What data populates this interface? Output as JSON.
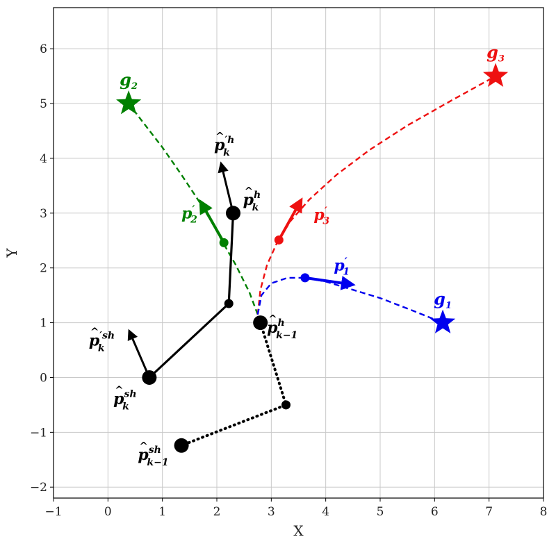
{
  "chart_data": {
    "type": "line",
    "xlabel": "X",
    "ylabel": "Y",
    "xlim": [
      -1,
      8
    ],
    "ylim": [
      -2.2,
      6.75
    ],
    "xticks": [
      "−1",
      "0",
      "1",
      "2",
      "3",
      "4",
      "5",
      "6",
      "7",
      "8"
    ],
    "yticks": [
      "−2",
      "−1",
      "0",
      "1",
      "2",
      "3",
      "4",
      "5",
      "6"
    ],
    "grid": true,
    "colors": {
      "green": "#008000",
      "red": "#ee1111",
      "blue": "#0000ee",
      "black": "#000000"
    },
    "goals": [
      {
        "label": "g",
        "sub": "2",
        "x": 0.38,
        "y": 5.0,
        "color": "#008000"
      },
      {
        "label": "g",
        "sub": "3",
        "x": 7.12,
        "y": 5.5,
        "color": "#ee1111"
      },
      {
        "label": "g",
        "sub": "1",
        "x": 6.15,
        "y": 1.0,
        "color": "#0000ee"
      }
    ],
    "predicted_paths": [
      {
        "name": "p2",
        "color": "#008000",
        "points": [
          [
            2.75,
            1.15
          ],
          [
            2.6,
            1.55
          ],
          [
            2.35,
            2.05
          ],
          [
            2.12,
            2.45
          ],
          [
            1.9,
            2.85
          ],
          [
            1.65,
            3.25
          ],
          [
            1.35,
            3.7
          ],
          [
            1.0,
            4.2
          ],
          [
            0.65,
            4.65
          ],
          [
            0.38,
            5.0
          ]
        ]
      },
      {
        "name": "p3",
        "color": "#ee1111",
        "points": [
          [
            2.75,
            1.15
          ],
          [
            2.8,
            1.6
          ],
          [
            2.92,
            2.05
          ],
          [
            3.1,
            2.45
          ],
          [
            3.35,
            2.85
          ],
          [
            3.7,
            3.25
          ],
          [
            4.2,
            3.7
          ],
          [
            4.8,
            4.15
          ],
          [
            5.5,
            4.6
          ],
          [
            6.3,
            5.05
          ],
          [
            7.12,
            5.5
          ]
        ]
      },
      {
        "name": "p1",
        "color": "#0000ee",
        "points": [
          [
            2.75,
            1.15
          ],
          [
            2.82,
            1.5
          ],
          [
            3.0,
            1.72
          ],
          [
            3.3,
            1.82
          ],
          [
            3.62,
            1.82
          ],
          [
            4.0,
            1.75
          ],
          [
            4.5,
            1.6
          ],
          [
            5.0,
            1.45
          ],
          [
            5.6,
            1.22
          ],
          [
            6.15,
            1.0
          ]
        ]
      }
    ],
    "intermediate_points": [
      {
        "x": 2.13,
        "y": 2.46,
        "color": "#008000"
      },
      {
        "x": 3.14,
        "y": 2.51,
        "color": "#ee1111"
      },
      {
        "x": 3.62,
        "y": 1.82,
        "color": "#0000ee"
      }
    ],
    "direction_arrows": [
      {
        "from": [
          2.13,
          2.46
        ],
        "to": [
          1.65,
          3.3
        ],
        "color": "#008000",
        "width": 4
      },
      {
        "from": [
          3.14,
          2.51
        ],
        "to": [
          3.6,
          3.33
        ],
        "color": "#ee1111",
        "width": 4
      },
      {
        "from": [
          3.62,
          1.82
        ],
        "to": [
          4.6,
          1.68
        ],
        "color": "#0000ee",
        "width": 4
      },
      {
        "from": [
          2.3,
          3.0
        ],
        "to": [
          2.06,
          3.98
        ],
        "color": "#000000",
        "width": 3
      },
      {
        "from": [
          0.76,
          0.0
        ],
        "to": [
          0.36,
          0.92
        ],
        "color": "#000000",
        "width": 3
      }
    ],
    "human_current": {
      "points": [
        [
          2.3,
          3.0
        ],
        [
          2.22,
          1.35
        ],
        [
          0.76,
          0.0
        ]
      ],
      "style": "solid",
      "color": "#000000"
    },
    "human_previous": {
      "points": [
        [
          2.8,
          1.0
        ],
        [
          3.27,
          -0.5
        ],
        [
          1.35,
          -1.24
        ]
      ],
      "style": "dotted",
      "color": "#000000"
    },
    "joints": [
      {
        "x": 2.3,
        "y": 3.0,
        "size": "large"
      },
      {
        "x": 2.22,
        "y": 1.35,
        "size": "small"
      },
      {
        "x": 0.76,
        "y": 0.0,
        "size": "large"
      },
      {
        "x": 2.8,
        "y": 1.0,
        "size": "large"
      },
      {
        "x": 3.27,
        "y": -0.5,
        "size": "small"
      },
      {
        "x": 1.35,
        "y": -1.24,
        "size": "large"
      }
    ],
    "annotations": [
      {
        "base": "p",
        "sub": "2",
        "prime": "′",
        "hat": false,
        "x": 1.35,
        "y": 2.9,
        "color": "#008000"
      },
      {
        "base": "p",
        "sub": "3",
        "prime": "′",
        "hat": false,
        "x": 3.78,
        "y": 2.88,
        "color": "#ee1111"
      },
      {
        "base": "p",
        "sub": "1",
        "prime": "′",
        "hat": false,
        "x": 4.15,
        "y": 1.95,
        "color": "#0000ee"
      },
      {
        "base": "p",
        "sub": "k",
        "sup": "′h",
        "hat": true,
        "x": 1.95,
        "y": 4.15,
        "color": "#000000"
      },
      {
        "base": "p",
        "sub": "k",
        "sup": "h",
        "hat": true,
        "x": 2.48,
        "y": 3.15,
        "color": "#000000"
      },
      {
        "base": "p",
        "sub": "k−1",
        "sup": "h",
        "hat": true,
        "x": 2.92,
        "y": 0.82,
        "color": "#000000"
      },
      {
        "base": "p",
        "sub": "k",
        "sup": "′sh",
        "hat": true,
        "x": -0.35,
        "y": 0.58,
        "color": "#000000"
      },
      {
        "base": "p",
        "sub": "k",
        "sup": "sh",
        "hat": true,
        "x": 0.1,
        "y": -0.48,
        "color": "#000000"
      },
      {
        "base": "p",
        "sub": "k−1",
        "sup": "sh",
        "hat": true,
        "x": 0.55,
        "y": -1.5,
        "color": "#000000"
      }
    ]
  }
}
